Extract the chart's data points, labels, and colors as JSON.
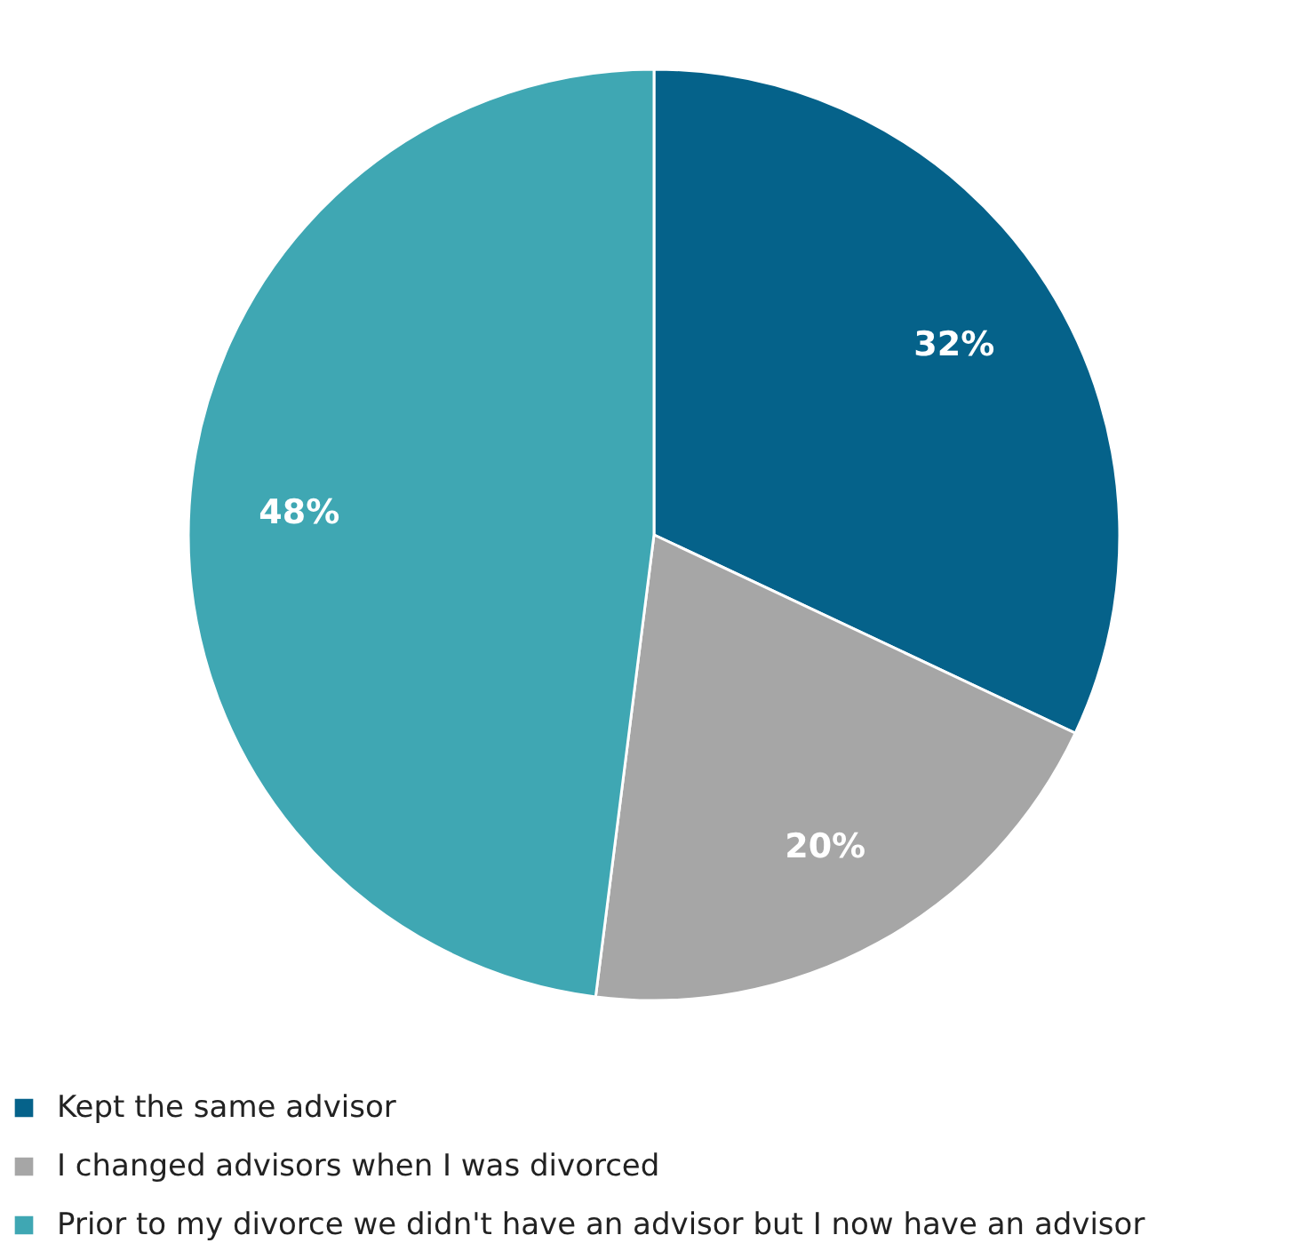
{
  "chart_data": {
    "type": "pie",
    "categories": [
      "Kept the same advisor",
      "I changed advisors when I was divorced",
      "Prior to my divorce we didn't have an advisor but I now have an advisor"
    ],
    "values": [
      32,
      20,
      48
    ],
    "colors": [
      "#05628a",
      "#a6a6a6",
      "#3fa7b3"
    ],
    "value_labels": [
      "32%",
      "20%",
      "48%"
    ],
    "legend": "bottom"
  }
}
